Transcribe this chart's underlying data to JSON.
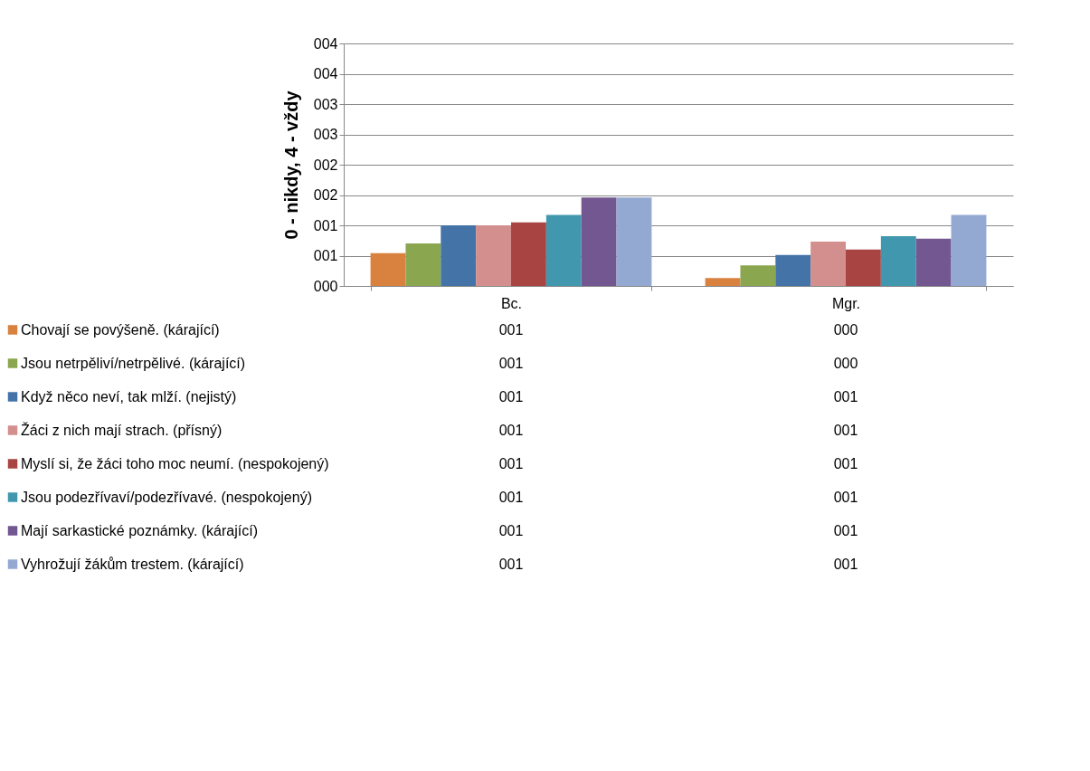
{
  "chart_data": {
    "type": "bar",
    "ylabel": "0 - nikdy, 4 - vždy",
    "categories": [
      "Bc.",
      "Mgr."
    ],
    "series": [
      {
        "name": "Chovají se povýšeně. (kárající)",
        "color": "#d9823f",
        "values": [
          0.54,
          0.13
        ],
        "value_labels": [
          "001",
          "000"
        ]
      },
      {
        "name": "Jsou netrpěliví/netrpělivé. (kárající)",
        "color": "#8aa64f",
        "values": [
          0.7,
          0.34
        ],
        "value_labels": [
          "001",
          "000"
        ]
      },
      {
        "name": "Když něco neví, tak mlží. (nejistý)",
        "color": "#4473a8",
        "values": [
          1.0,
          0.51
        ],
        "value_labels": [
          "001",
          "001"
        ]
      },
      {
        "name": "Žáci z nich mají strach. (přísný)",
        "color": "#d38f8e",
        "values": [
          1.0,
          0.73
        ],
        "value_labels": [
          "001",
          "001"
        ]
      },
      {
        "name": "Myslí si, že žáci toho moc neumí. (nespokojený)",
        "color": "#a84543",
        "values": [
          1.05,
          0.6
        ],
        "value_labels": [
          "001",
          "001"
        ]
      },
      {
        "name": "Jsou podezřívaví/podezřívavé. (nespokojený)",
        "color": "#4198ae",
        "values": [
          1.17,
          0.82
        ],
        "value_labels": [
          "001",
          "001"
        ]
      },
      {
        "name": "Mají sarkastické poznámky. (kárající)",
        "color": "#735791",
        "values": [
          1.46,
          0.78
        ],
        "value_labels": [
          "001",
          "001"
        ]
      },
      {
        "name": "Vyhrožují žákům trestem. (kárající)",
        "color": "#93a9d1",
        "values": [
          1.46,
          1.17
        ],
        "value_labels": [
          "001",
          "001"
        ]
      }
    ],
    "ylim": [
      0,
      4
    ],
    "yticks": [
      {
        "value": 0,
        "label": "000"
      },
      {
        "value": 0.5,
        "label": "001"
      },
      {
        "value": 1,
        "label": "001"
      },
      {
        "value": 1.5,
        "label": "002"
      },
      {
        "value": 2,
        "label": "002"
      },
      {
        "value": 2.5,
        "label": "003"
      },
      {
        "value": 3,
        "label": "003"
      },
      {
        "value": 3.5,
        "label": "004"
      },
      {
        "value": 4,
        "label": "004"
      }
    ],
    "grid": "y",
    "legend": "bottom"
  }
}
